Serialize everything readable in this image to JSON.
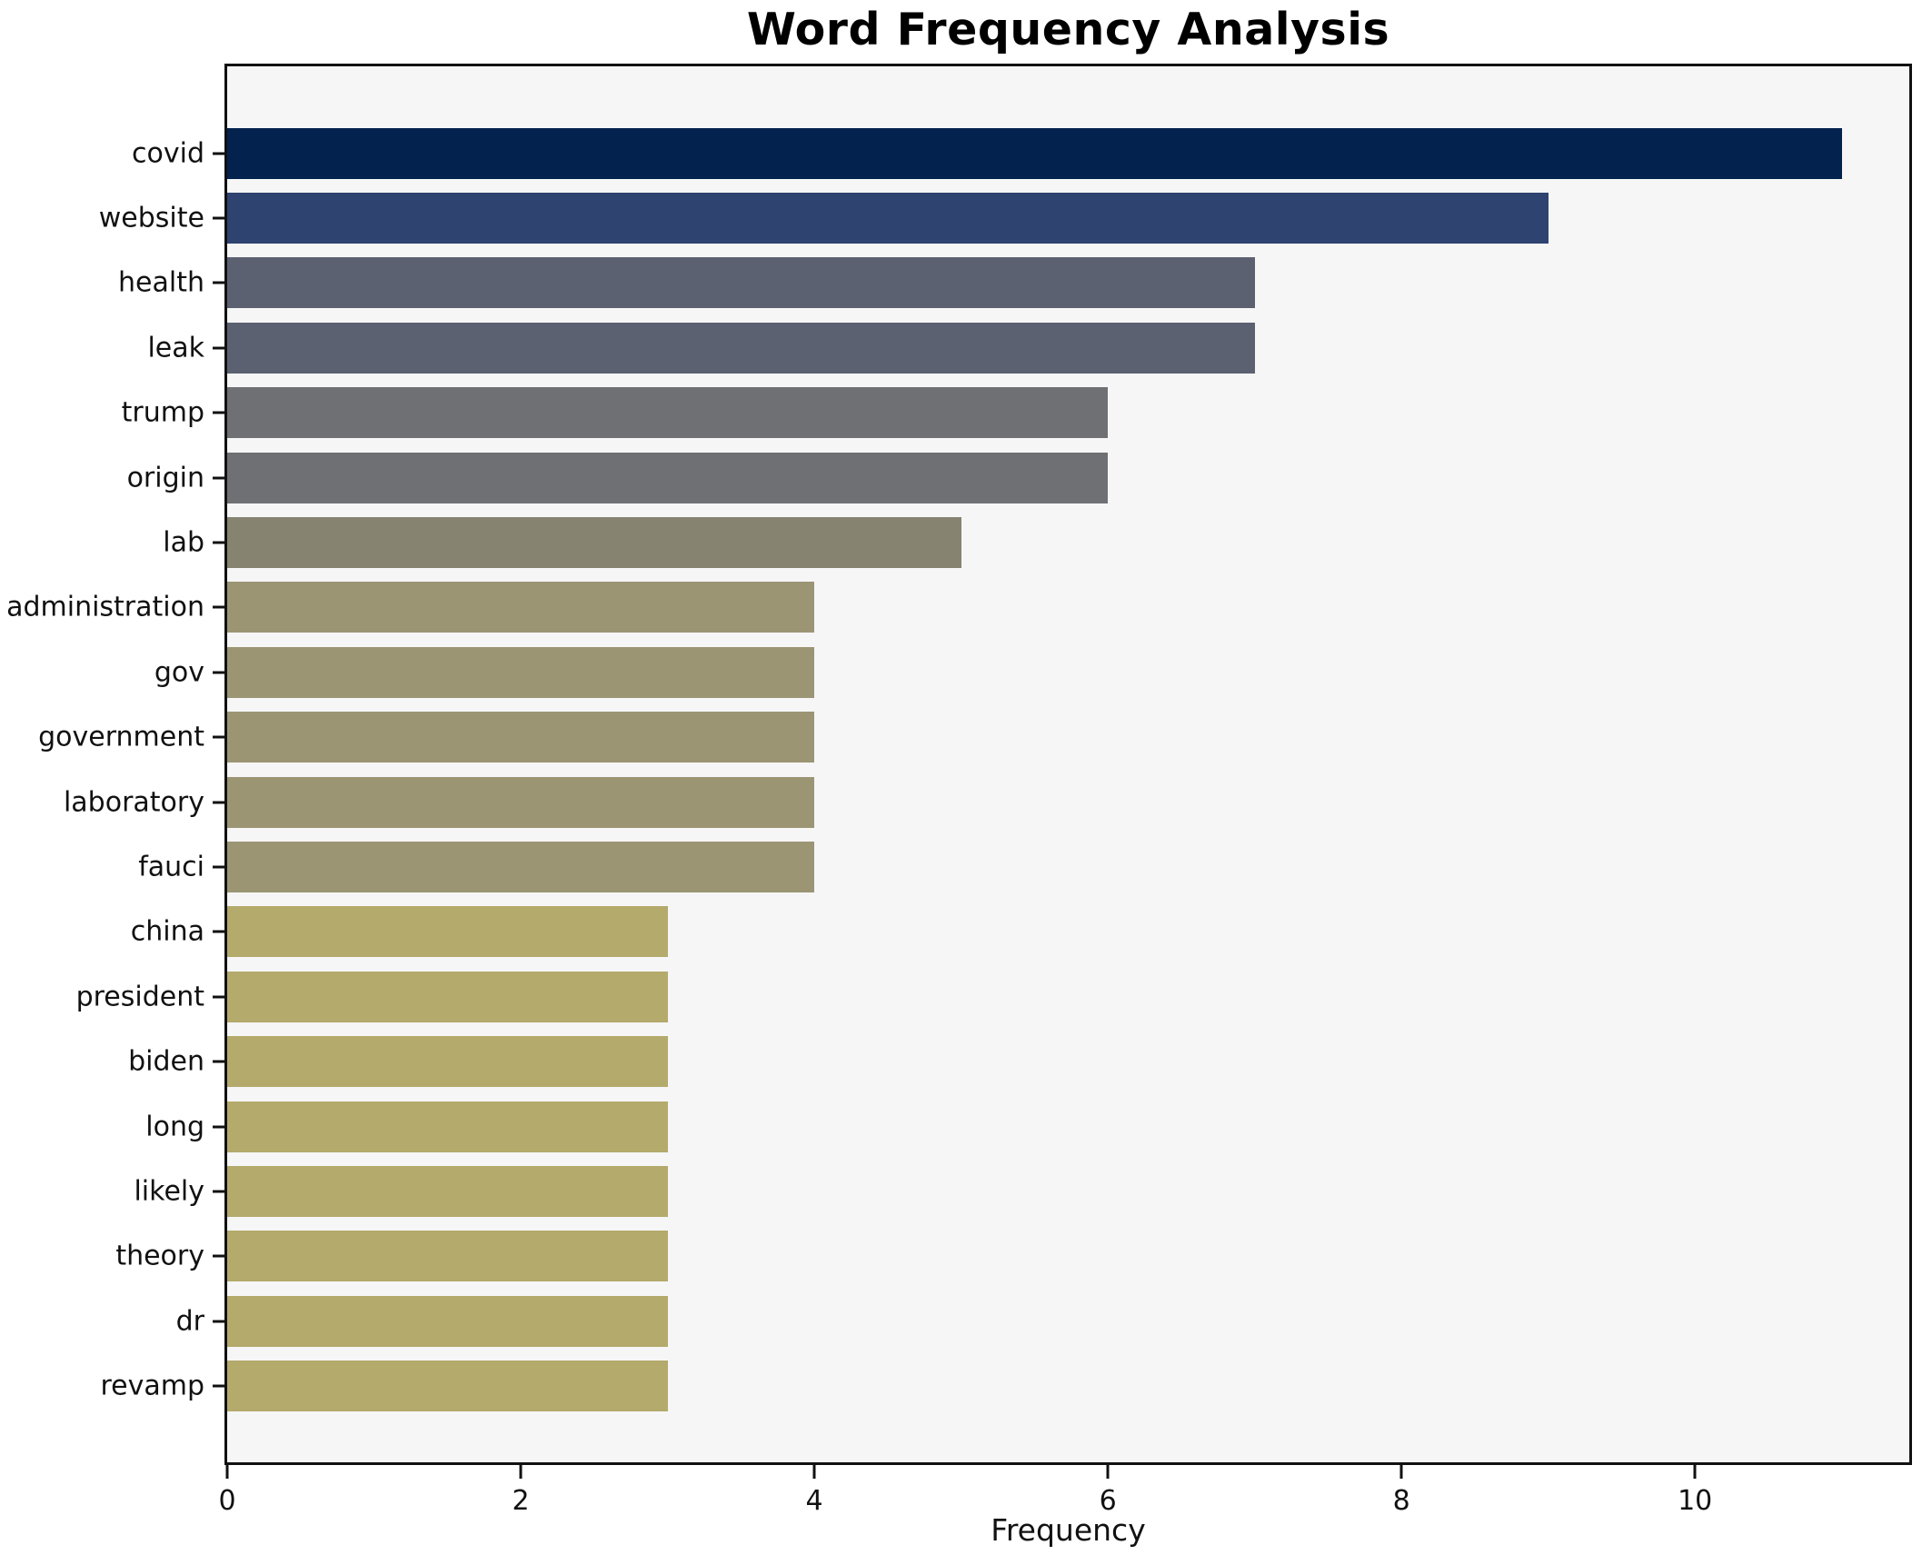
{
  "chart_data": {
    "type": "bar",
    "orientation": "horizontal",
    "title": "Word Frequency Analysis",
    "xlabel": "Frequency",
    "ylabel": "",
    "xlim": [
      0,
      11.46
    ],
    "xticks": [
      0,
      2,
      4,
      6,
      8,
      10
    ],
    "grid": false,
    "legend": false,
    "plot_background": "#f6f6f7",
    "figure_background": "#ffffff",
    "frame_color": "#111111",
    "categories": [
      "covid",
      "website",
      "health",
      "leak",
      "trump",
      "origin",
      "lab",
      "administration",
      "gov",
      "government",
      "laboratory",
      "fauci",
      "china",
      "president",
      "biden",
      "long",
      "likely",
      "theory",
      "dr",
      "revamp"
    ],
    "values": [
      11,
      9,
      7,
      7,
      6,
      6,
      5,
      4,
      4,
      4,
      4,
      4,
      3,
      3,
      3,
      3,
      3,
      3,
      3,
      3
    ],
    "colors": [
      "#03224d",
      "#2e4370",
      "#5b6170",
      "#5b6170",
      "#6e7073",
      "#6e7073",
      "#868471",
      "#9c9574",
      "#9c9574",
      "#9c9574",
      "#9c9574",
      "#9c9574",
      "#b3aa6c",
      "#b3aa6c",
      "#b3aa6c",
      "#b3aa6c",
      "#b3aa6c",
      "#b3aa6c",
      "#b3aa6c",
      "#b3aa6c"
    ]
  }
}
